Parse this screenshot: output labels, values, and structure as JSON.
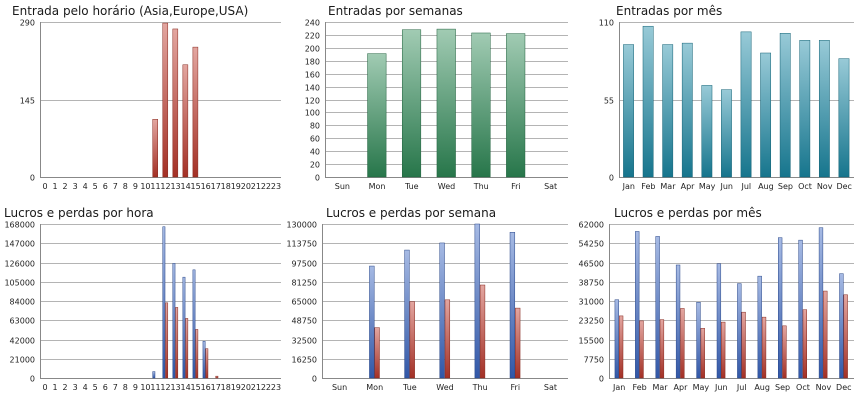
{
  "chart_data": [
    {
      "type": "bar",
      "title": "Entrada pelo horário (Asia,Europe,USA)",
      "categories": [
        "0",
        "1",
        "2",
        "3",
        "4",
        "5",
        "6",
        "7",
        "8",
        "9",
        "10",
        "11",
        "12",
        "13",
        "14",
        "15",
        "16",
        "17",
        "18",
        "19",
        "20",
        "21",
        "22",
        "23"
      ],
      "series": [
        {
          "color": "#c0392b",
          "values": [
            0,
            0,
            0,
            0,
            0,
            0,
            0,
            0,
            0,
            0,
            0,
            108,
            288,
            277,
            210,
            243,
            0,
            0,
            0,
            0,
            0,
            0,
            0,
            0
          ]
        }
      ],
      "ylim": [
        0,
        290
      ],
      "yticks": [
        0,
        145,
        290
      ],
      "grid": true
    },
    {
      "type": "bar",
      "title": "Entradas por semanas",
      "categories": [
        "Sun",
        "Mon",
        "Tue",
        "Wed",
        "Thu",
        "Fri",
        "Sat"
      ],
      "series": [
        {
          "color": "#2e8b57",
          "values": [
            0,
            191,
            228,
            229,
            223,
            222,
            0
          ]
        }
      ],
      "ylim": [
        0,
        240
      ],
      "yticks": [
        0,
        20,
        40,
        60,
        80,
        100,
        120,
        140,
        160,
        180,
        200,
        220,
        240
      ],
      "grid": true
    },
    {
      "type": "bar",
      "title": "Entradas por mês",
      "categories": [
        "Jan",
        "Feb",
        "Mar",
        "Apr",
        "May",
        "Jun",
        "Jul",
        "Aug",
        "Sep",
        "Oct",
        "Nov",
        "Dec"
      ],
      "series": [
        {
          "color": "#1a8aa6",
          "values": [
            94,
            107,
            94,
            95,
            65,
            62,
            103,
            88,
            102,
            97,
            97,
            84
          ]
        }
      ],
      "ylim": [
        0,
        110
      ],
      "yticks": [
        0,
        55,
        110
      ],
      "grid": true
    },
    {
      "type": "bar",
      "title": "Lucros e perdas por hora",
      "categories": [
        "0",
        "1",
        "2",
        "3",
        "4",
        "5",
        "6",
        "7",
        "8",
        "9",
        "10",
        "11",
        "12",
        "13",
        "14",
        "15",
        "16",
        "17",
        "18",
        "19",
        "20",
        "21",
        "22",
        "23"
      ],
      "series": [
        {
          "color": "#3a66c4",
          "values": [
            0,
            0,
            0,
            0,
            0,
            0,
            0,
            0,
            0,
            0,
            0,
            7000,
            165000,
            125000,
            110000,
            118000,
            40000,
            0,
            0,
            0,
            0,
            0,
            0,
            0
          ]
        },
        {
          "color": "#c0392b",
          "values": [
            0,
            0,
            0,
            0,
            0,
            0,
            0,
            0,
            0,
            0,
            0,
            0,
            82000,
            77000,
            65000,
            53000,
            32000,
            2000,
            0,
            0,
            0,
            0,
            0,
            0
          ]
        }
      ],
      "ylim": [
        0,
        168000
      ],
      "yticks": [
        0,
        21000,
        42000,
        63000,
        84000,
        105000,
        126000,
        147000,
        168000
      ],
      "grid": true
    },
    {
      "type": "bar",
      "title": "Lucros e perdas por semana",
      "categories": [
        "Sun",
        "Mon",
        "Tue",
        "Wed",
        "Thu",
        "Fri",
        "Sat"
      ],
      "series": [
        {
          "color": "#3a66c4",
          "values": [
            0,
            94500,
            108000,
            114000,
            130000,
            123000,
            0
          ]
        },
        {
          "color": "#c0392b",
          "values": [
            0,
            42500,
            64500,
            66000,
            78500,
            59000,
            0
          ]
        }
      ],
      "ylim": [
        0,
        130000
      ],
      "yticks": [
        0,
        16250,
        32500,
        48750,
        65000,
        81250,
        97500,
        113750,
        130000
      ],
      "grid": true
    },
    {
      "type": "bar",
      "title": "Lucros e perdas por mês",
      "categories": [
        "Jan",
        "Feb",
        "Mar",
        "Apr",
        "May",
        "Jun",
        "Jul",
        "Aug",
        "Sep",
        "Oct",
        "Nov",
        "Dec"
      ],
      "series": [
        {
          "color": "#3a66c4",
          "values": [
            31500,
            59000,
            57000,
            45500,
            30500,
            46000,
            38000,
            41000,
            56500,
            55500,
            60500,
            42000
          ]
        },
        {
          "color": "#c0392b",
          "values": [
            25000,
            23000,
            23500,
            28000,
            20000,
            22500,
            26500,
            24500,
            21000,
            27500,
            35000,
            33500
          ]
        }
      ],
      "ylim": [
        0,
        62000
      ],
      "yticks": [
        0,
        7750,
        15500,
        23250,
        31000,
        38750,
        46500,
        54250,
        62000
      ],
      "grid": true
    }
  ]
}
